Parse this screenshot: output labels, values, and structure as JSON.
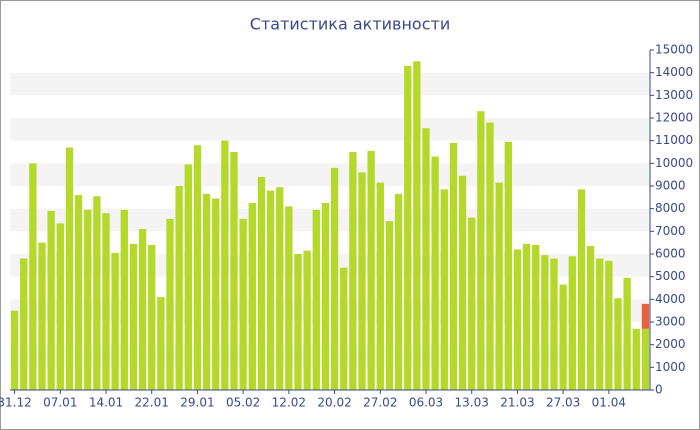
{
  "chart_data": {
    "type": "bar",
    "stacked": true,
    "title": "Статистика активности",
    "categories": [
      "31.12",
      null,
      null,
      null,
      null,
      "07.01",
      null,
      null,
      null,
      null,
      "14.01",
      null,
      null,
      null,
      null,
      "22.01",
      null,
      null,
      null,
      null,
      "29.01",
      null,
      null,
      null,
      null,
      "05.02",
      null,
      null,
      null,
      null,
      "12.02",
      null,
      null,
      null,
      null,
      "20.02",
      null,
      null,
      null,
      null,
      "27.02",
      null,
      null,
      null,
      null,
      "06.03",
      null,
      null,
      null,
      null,
      "13.03",
      null,
      null,
      null,
      null,
      "21.03",
      null,
      null,
      null,
      null,
      "27.03",
      null,
      null,
      null,
      null,
      "01.04",
      null,
      null,
      null,
      null
    ],
    "series": [
      {
        "color": "#b5d92b",
        "values": [
          3500,
          5800,
          10000,
          6500,
          7900,
          7350,
          10700,
          8600,
          7950,
          8550,
          7800,
          6050,
          7950,
          6450,
          7100,
          6400,
          4100,
          7550,
          9000,
          9950,
          10800,
          8650,
          8450,
          11000,
          10500,
          7550,
          8250,
          9400,
          8800,
          8950,
          8100,
          6000,
          6150,
          7950,
          8250,
          9800,
          5400,
          10500,
          9600,
          10550,
          9150,
          7450,
          8650,
          14300,
          14500,
          11550,
          10300,
          8850,
          10900,
          9450,
          7600,
          12300,
          11800,
          9150,
          10950,
          6200,
          6450,
          6400,
          5950,
          5800,
          4650,
          5900,
          8850,
          6350,
          5800,
          5700,
          4050,
          4950,
          2700,
          2700
        ]
      },
      {
        "color": "#e8603c",
        "values": [
          null,
          null,
          null,
          null,
          null,
          null,
          null,
          null,
          null,
          null,
          null,
          null,
          null,
          null,
          null,
          null,
          null,
          null,
          null,
          null,
          null,
          null,
          null,
          null,
          null,
          null,
          null,
          null,
          null,
          null,
          null,
          null,
          null,
          null,
          null,
          null,
          null,
          null,
          null,
          null,
          null,
          null,
          null,
          null,
          null,
          null,
          null,
          null,
          null,
          null,
          null,
          null,
          null,
          null,
          null,
          null,
          null,
          null,
          null,
          null,
          null,
          null,
          null,
          null,
          null,
          null,
          null,
          null,
          null,
          1100
        ]
      }
    ],
    "ylim": [
      0,
      15000
    ],
    "yticks": [
      0,
      1000,
      2000,
      3000,
      4000,
      5000,
      6000,
      7000,
      8000,
      9000,
      10000,
      11000,
      12000,
      13000,
      14000,
      15000
    ],
    "grid": "bands",
    "y_axis_side": "right"
  }
}
